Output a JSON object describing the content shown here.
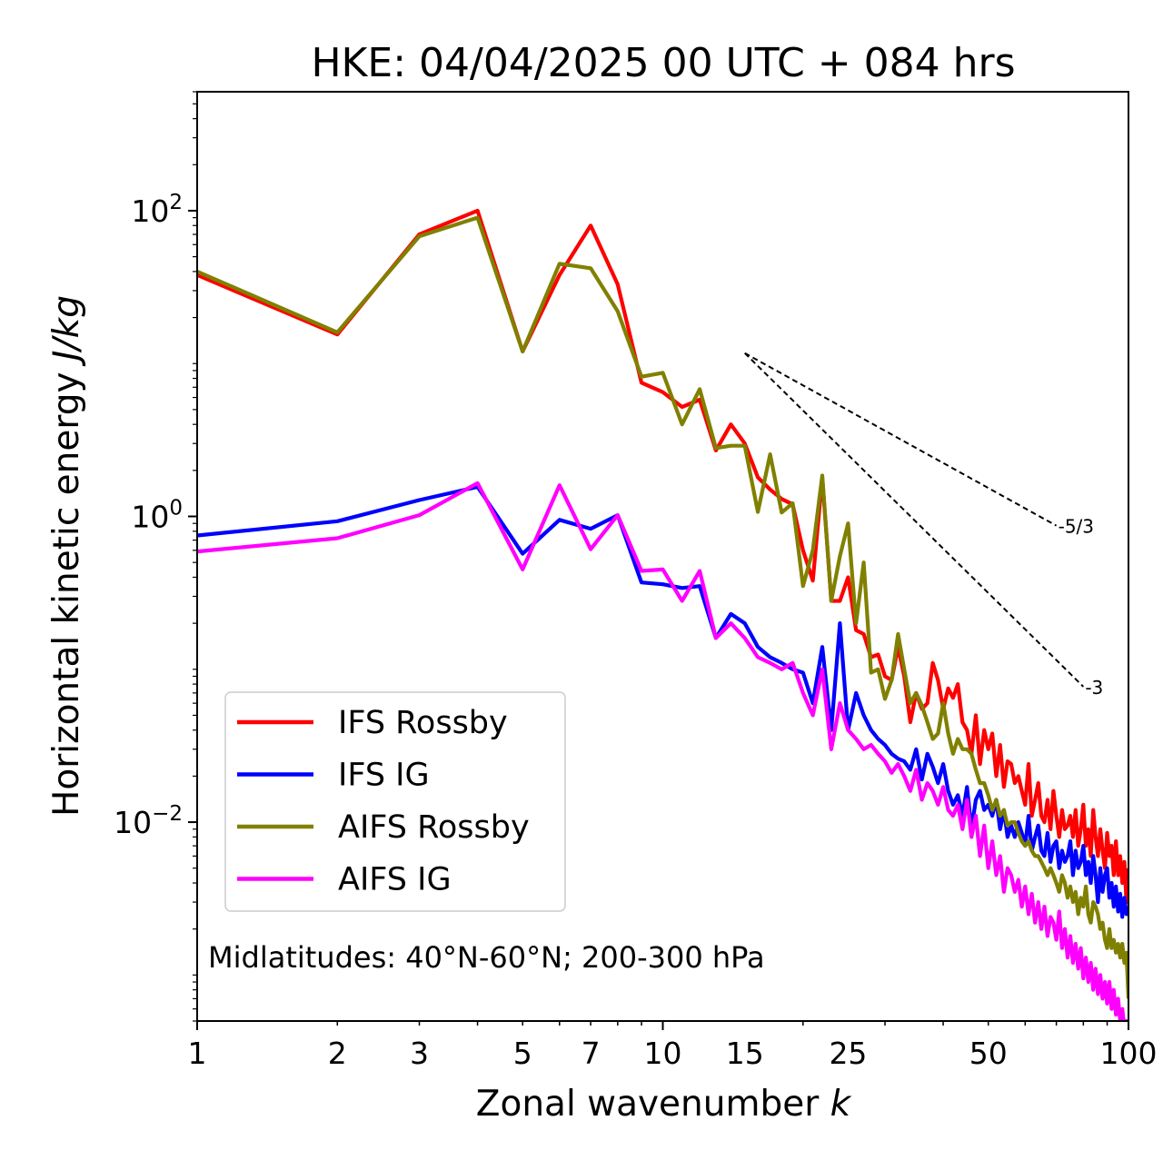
{
  "chart_data": {
    "type": "line",
    "title": "HKE: 04/04/2025 00 UTC + 084 hrs",
    "xlabel": "Zonal wavenumber ",
    "xlabel_italic": "k",
    "ylabel": "Horizontal kinetic energy ",
    "ylabel_italic": "J/kg",
    "x_scale": "log",
    "y_scale": "log",
    "xlim": [
      1,
      100
    ],
    "ylim": [
      0.0005,
      600
    ],
    "x_ticks": [
      1,
      2,
      3,
      5,
      7,
      10,
      15,
      25,
      50,
      100
    ],
    "x_tick_labels": [
      "1",
      "2",
      "3",
      "5",
      "7",
      "10",
      "15",
      "25",
      "50",
      "100"
    ],
    "y_ticks": [
      {
        "value": 100,
        "base": "10",
        "exp": "2"
      },
      {
        "value": 1,
        "base": "10",
        "exp": "0"
      },
      {
        "value": 0.01,
        "base": "10",
        "exp": "−2"
      }
    ],
    "grid": false,
    "legend_position": "lower-left",
    "annotation": "Midlatitudes: 40°N-60°N; 200-300 hPa",
    "series": [
      {
        "name": "IFS Rossby",
        "color": "#ff0000",
        "x": [
          1,
          2,
          3,
          4,
          5,
          6,
          7,
          8,
          9,
          10,
          11,
          12,
          13,
          14,
          15,
          16,
          17,
          18,
          19,
          20,
          21,
          22,
          23,
          24,
          25,
          26,
          27,
          28,
          29,
          30,
          31,
          32,
          33,
          34,
          35,
          36,
          37,
          38,
          39,
          40,
          41,
          42,
          43,
          44,
          45,
          46,
          47,
          48,
          49,
          50,
          51,
          52,
          53,
          54,
          55,
          56,
          57,
          58,
          59,
          60,
          61,
          62,
          63,
          64,
          65,
          66,
          67,
          68,
          69,
          70,
          71,
          72,
          73,
          74,
          75,
          76,
          77,
          78,
          79,
          80,
          81,
          82,
          83,
          84,
          85,
          86,
          87,
          88,
          89,
          90,
          91,
          92,
          93,
          94,
          95,
          96,
          97,
          98,
          99,
          100
        ],
        "y": [
          38,
          15.5,
          70,
          100,
          12,
          38,
          80,
          33,
          7.5,
          6.5,
          5.2,
          5.8,
          2.7,
          4,
          3,
          1.8,
          1.5,
          1.3,
          1.2,
          0.6,
          0.38,
          1.8,
          0.28,
          0.28,
          0.4,
          0.18,
          0.17,
          0.12,
          0.125,
          0.09,
          0.085,
          0.14,
          0.09,
          0.045,
          0.07,
          0.055,
          0.06,
          0.11,
          0.085,
          0.055,
          0.075,
          0.065,
          0.08,
          0.045,
          0.04,
          0.028,
          0.05,
          0.024,
          0.04,
          0.03,
          0.038,
          0.02,
          0.032,
          0.017,
          0.025,
          0.024,
          0.018,
          0.02,
          0.016,
          0.013,
          0.024,
          0.011,
          0.014,
          0.018,
          0.011,
          0.01,
          0.014,
          0.009,
          0.016,
          0.011,
          0.008,
          0.012,
          0.009,
          0.0095,
          0.011,
          0.008,
          0.012,
          0.007,
          0.009,
          0.013,
          0.007,
          0.009,
          0.006,
          0.012,
          0.008,
          0.006,
          0.009,
          0.0065,
          0.005,
          0.0085,
          0.006,
          0.007,
          0.0045,
          0.0075,
          0.0045,
          0.006,
          0.004,
          0.0055,
          0.003,
          0.005
        ]
      },
      {
        "name": "IFS IG",
        "color": "#0000ff",
        "x": [
          1,
          2,
          3,
          4,
          5,
          6,
          7,
          8,
          9,
          10,
          11,
          12,
          13,
          14,
          15,
          16,
          17,
          18,
          19,
          20,
          21,
          22,
          23,
          24,
          25,
          26,
          27,
          28,
          29,
          30,
          31,
          32,
          33,
          34,
          35,
          36,
          37,
          38,
          39,
          40,
          41,
          42,
          43,
          44,
          45,
          46,
          47,
          48,
          49,
          50,
          51,
          52,
          53,
          54,
          55,
          56,
          57,
          58,
          59,
          60,
          61,
          62,
          63,
          64,
          65,
          66,
          67,
          68,
          69,
          70,
          71,
          72,
          73,
          74,
          75,
          76,
          77,
          78,
          79,
          80,
          81,
          82,
          83,
          84,
          85,
          86,
          87,
          88,
          89,
          90,
          91,
          92,
          93,
          94,
          95,
          96,
          97,
          98,
          99,
          100
        ],
        "y": [
          0.75,
          0.93,
          1.28,
          1.56,
          0.57,
          0.95,
          0.83,
          1.02,
          0.37,
          0.36,
          0.34,
          0.35,
          0.16,
          0.23,
          0.2,
          0.14,
          0.12,
          0.11,
          0.1,
          0.095,
          0.06,
          0.14,
          0.04,
          0.2,
          0.04,
          0.07,
          0.05,
          0.04,
          0.035,
          0.032,
          0.028,
          0.026,
          0.025,
          0.022,
          0.03,
          0.019,
          0.028,
          0.023,
          0.018,
          0.024,
          0.016,
          0.013,
          0.015,
          0.011,
          0.017,
          0.009,
          0.014,
          0.016,
          0.012,
          0.013,
          0.011,
          0.014,
          0.009,
          0.012,
          0.008,
          0.0095,
          0.008,
          0.01,
          0.0085,
          0.007,
          0.011,
          0.0065,
          0.008,
          0.0095,
          0.0065,
          0.006,
          0.0085,
          0.0055,
          0.007,
          0.0075,
          0.005,
          0.0065,
          0.0055,
          0.006,
          0.0075,
          0.0045,
          0.0065,
          0.005,
          0.0055,
          0.007,
          0.0045,
          0.0055,
          0.004,
          0.006,
          0.0045,
          0.003,
          0.005,
          0.0035,
          0.0045,
          0.005,
          0.0032,
          0.004,
          0.0028,
          0.0038,
          0.0026,
          0.0034,
          0.0024,
          0.0032,
          0.0025,
          0.0028
        ]
      },
      {
        "name": "AIFS Rossby",
        "color": "#808000",
        "x": [
          1,
          2,
          3,
          4,
          5,
          6,
          7,
          8,
          9,
          10,
          11,
          12,
          13,
          14,
          15,
          16,
          17,
          18,
          19,
          20,
          21,
          22,
          23,
          24,
          25,
          26,
          27,
          28,
          29,
          30,
          31,
          32,
          33,
          34,
          35,
          36,
          37,
          38,
          39,
          40,
          41,
          42,
          43,
          44,
          45,
          46,
          47,
          48,
          49,
          50,
          51,
          52,
          53,
          54,
          55,
          56,
          57,
          58,
          59,
          60,
          61,
          62,
          63,
          64,
          65,
          66,
          67,
          68,
          69,
          70,
          71,
          72,
          73,
          74,
          75,
          76,
          77,
          78,
          79,
          80,
          81,
          82,
          83,
          84,
          85,
          86,
          87,
          88,
          89,
          90,
          91,
          92,
          93,
          94,
          95,
          96,
          97,
          98,
          99,
          100
        ],
        "y": [
          40,
          16,
          68,
          90,
          12,
          45,
          42,
          22,
          8.2,
          8.7,
          4,
          6.8,
          2.8,
          2.9,
          2.9,
          1.07,
          2.55,
          1.06,
          1.22,
          0.35,
          0.6,
          1.85,
          0.28,
          0.55,
          0.9,
          0.2,
          0.5,
          0.095,
          0.1,
          0.064,
          0.085,
          0.17,
          0.1,
          0.06,
          0.07,
          0.058,
          0.045,
          0.035,
          0.038,
          0.06,
          0.038,
          0.028,
          0.035,
          0.03,
          0.03,
          0.028,
          0.022,
          0.018,
          0.018,
          0.015,
          0.012,
          0.014,
          0.011,
          0.012,
          0.0095,
          0.01,
          0.01,
          0.0085,
          0.0075,
          0.007,
          0.0075,
          0.0065,
          0.006,
          0.006,
          0.0055,
          0.005,
          0.0045,
          0.005,
          0.0045,
          0.004,
          0.0035,
          0.0045,
          0.004,
          0.0032,
          0.0038,
          0.003,
          0.0035,
          0.0025,
          0.0032,
          0.0028,
          0.0038,
          0.0025,
          0.0022,
          0.003,
          0.0028,
          0.0025,
          0.002,
          0.0022,
          0.0017,
          0.0015,
          0.002,
          0.0015,
          0.0017,
          0.0014,
          0.0016,
          0.0013,
          0.0016,
          0.0012,
          0.0014,
          0.0007
        ]
      },
      {
        "name": "AIFS IG",
        "color": "#ff00ff",
        "x": [
          1,
          2,
          3,
          4,
          5,
          6,
          7,
          8,
          9,
          10,
          11,
          12,
          13,
          14,
          15,
          16,
          17,
          18,
          19,
          20,
          21,
          22,
          23,
          24,
          25,
          26,
          27,
          28,
          29,
          30,
          31,
          32,
          33,
          34,
          35,
          36,
          37,
          38,
          39,
          40,
          41,
          42,
          43,
          44,
          45,
          46,
          47,
          48,
          49,
          50,
          51,
          52,
          53,
          54,
          55,
          56,
          57,
          58,
          59,
          60,
          61,
          62,
          63,
          64,
          65,
          66,
          67,
          68,
          69,
          70,
          71,
          72,
          73,
          74,
          75,
          76,
          77,
          78,
          79,
          80,
          81,
          82,
          83,
          84,
          85,
          86,
          87,
          88,
          89,
          90,
          91,
          92,
          93,
          94,
          95,
          96,
          97,
          98,
          99,
          100
        ],
        "y": [
          0.59,
          0.72,
          1.02,
          1.65,
          0.45,
          1.6,
          0.61,
          1.02,
          0.44,
          0.45,
          0.28,
          0.44,
          0.16,
          0.2,
          0.16,
          0.12,
          0.11,
          0.1,
          0.11,
          0.07,
          0.05,
          0.1,
          0.03,
          0.06,
          0.04,
          0.035,
          0.03,
          0.032,
          0.028,
          0.025,
          0.021,
          0.024,
          0.02,
          0.016,
          0.022,
          0.014,
          0.018,
          0.016,
          0.013,
          0.017,
          0.012,
          0.011,
          0.013,
          0.009,
          0.014,
          0.008,
          0.011,
          0.006,
          0.0095,
          0.005,
          0.0075,
          0.0045,
          0.006,
          0.0035,
          0.005,
          0.0045,
          0.0035,
          0.0042,
          0.0028,
          0.0038,
          0.0025,
          0.0034,
          0.0022,
          0.003,
          0.002,
          0.0028,
          0.0018,
          0.0024,
          0.0022,
          0.0017,
          0.0026,
          0.0015,
          0.002,
          0.0013,
          0.0018,
          0.0012,
          0.0016,
          0.0011,
          0.0015,
          0.00095,
          0.0013,
          0.0009,
          0.0012,
          0.0008,
          0.0011,
          0.00075,
          0.001,
          0.0007,
          0.0009,
          0.00065,
          0.0009,
          0.0006,
          0.0008,
          0.00055,
          0.0007,
          0.0005,
          0.0006,
          0.00045,
          0.0005,
          0.0004
        ]
      }
    ],
    "reference_lines": [
      {
        "label": "-5/3",
        "x_start": 15,
        "y_start": 11.7,
        "x_end": 70,
        "y_end": 0.87
      },
      {
        "label": "-3",
        "x_start": 15,
        "y_start": 11.7,
        "x_end": 80,
        "y_end": 0.077
      }
    ]
  }
}
